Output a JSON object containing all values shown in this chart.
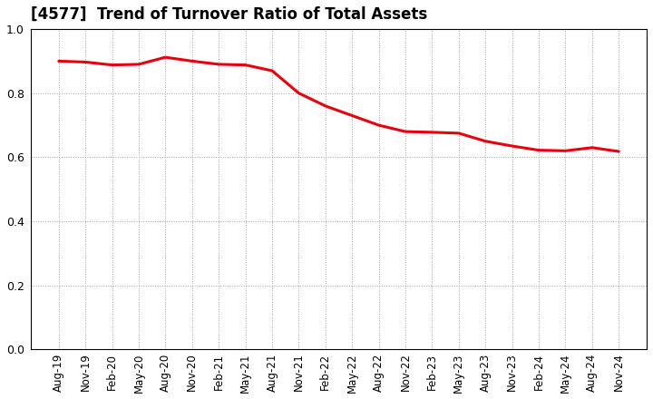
{
  "title": "[4577]  Trend of Turnover Ratio of Total Assets",
  "line_color": "#e8000d",
  "line_width": 2.2,
  "background_color": "#ffffff",
  "grid_color": "#999999",
  "ylim": [
    0.0,
    1.0
  ],
  "yticks": [
    0.0,
    0.2,
    0.4,
    0.6,
    0.8,
    1.0
  ],
  "x_labels": [
    "Aug-19",
    "Nov-19",
    "Feb-20",
    "May-20",
    "Aug-20",
    "Nov-20",
    "Feb-21",
    "May-21",
    "Aug-21",
    "Nov-21",
    "Feb-22",
    "May-22",
    "Aug-22",
    "Nov-22",
    "Feb-23",
    "May-23",
    "Aug-23",
    "Nov-23",
    "Feb-24",
    "May-24",
    "Aug-24",
    "Nov-24"
  ],
  "y_values": [
    0.9,
    0.897,
    0.888,
    0.89,
    0.912,
    0.9,
    0.89,
    0.888,
    0.87,
    0.8,
    0.76,
    0.73,
    0.7,
    0.68,
    0.678,
    0.675,
    0.65,
    0.635,
    0.622,
    0.62,
    0.63,
    0.618
  ]
}
